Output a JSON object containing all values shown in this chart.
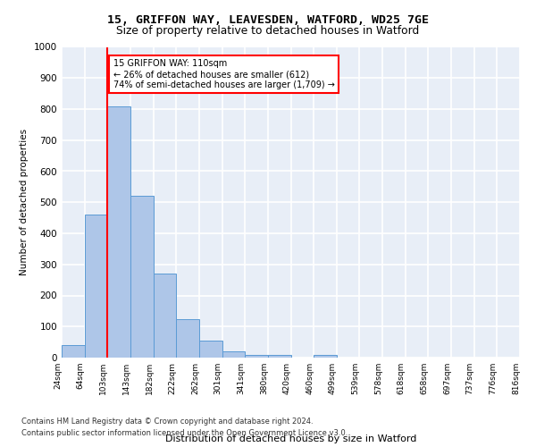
{
  "title1": "15, GRIFFON WAY, LEAVESDEN, WATFORD, WD25 7GE",
  "title2": "Size of property relative to detached houses in Watford",
  "xlabel": "Distribution of detached houses by size in Watford",
  "ylabel": "Number of detached properties",
  "bin_labels": [
    "24sqm",
    "64sqm",
    "103sqm",
    "143sqm",
    "182sqm",
    "222sqm",
    "262sqm",
    "301sqm",
    "341sqm",
    "380sqm",
    "420sqm",
    "460sqm",
    "499sqm",
    "539sqm",
    "578sqm",
    "618sqm",
    "658sqm",
    "697sqm",
    "737sqm",
    "776sqm",
    "816sqm"
  ],
  "bar_values": [
    40,
    460,
    810,
    520,
    270,
    125,
    55,
    20,
    10,
    10,
    0,
    10,
    0,
    0,
    0,
    0,
    0,
    0,
    0,
    0
  ],
  "bar_color": "#aec6e8",
  "bar_edge_color": "#5b9bd5",
  "red_line_bin_index": 2,
  "annotation_text": "15 GRIFFON WAY: 110sqm\n← 26% of detached houses are smaller (612)\n74% of semi-detached houses are larger (1,709) →",
  "annotation_box_color": "white",
  "annotation_border_color": "red",
  "footer1": "Contains HM Land Registry data © Crown copyright and database right 2024.",
  "footer2": "Contains public sector information licensed under the Open Government Licence v3.0.",
  "ylim": [
    0,
    1000
  ],
  "yticks": [
    0,
    100,
    200,
    300,
    400,
    500,
    600,
    700,
    800,
    900,
    1000
  ],
  "background_color": "#e8eef7",
  "grid_color": "white",
  "fig_bg": "white"
}
